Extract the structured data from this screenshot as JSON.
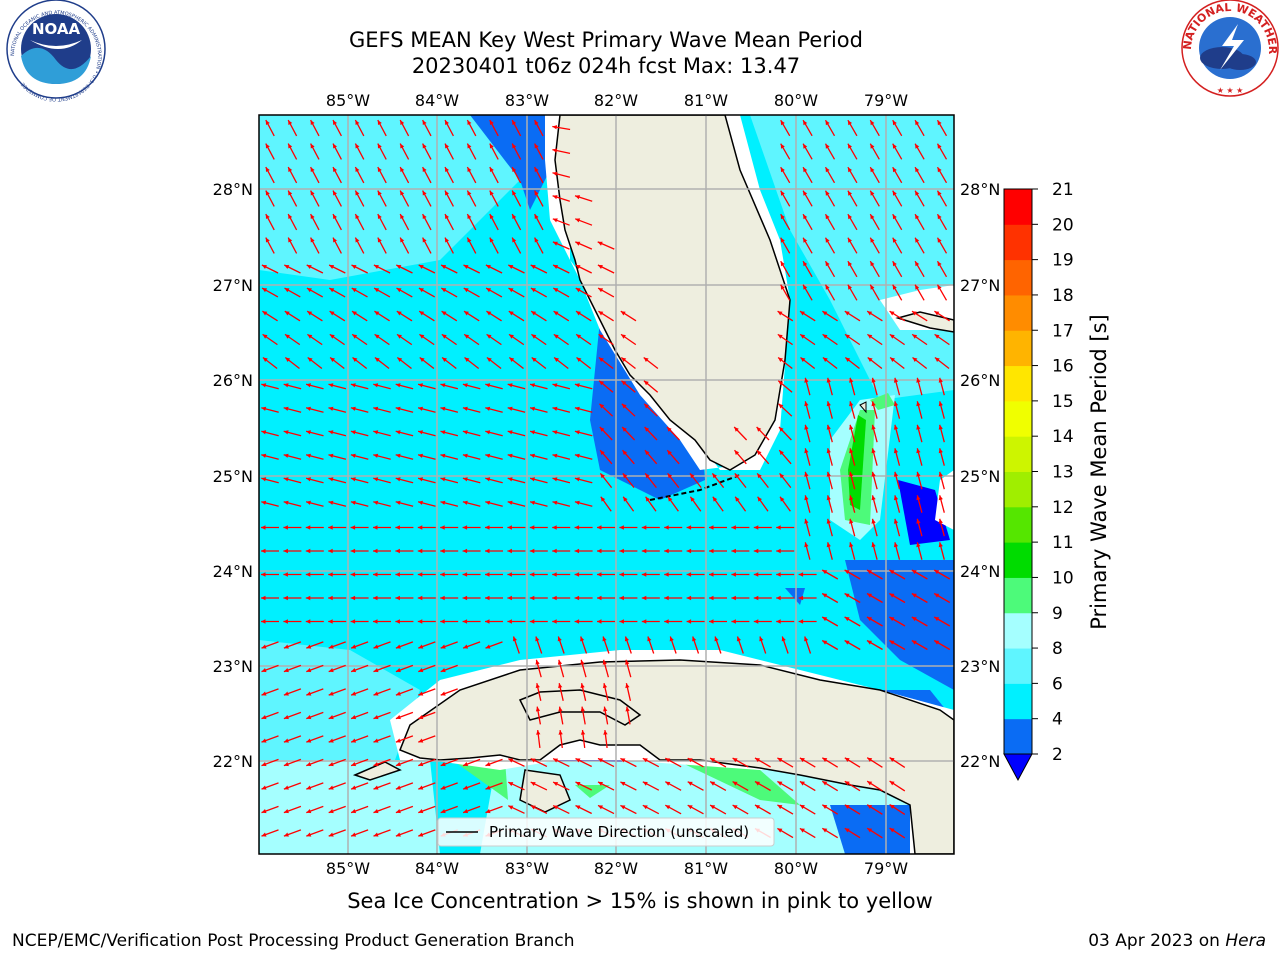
{
  "header": {
    "title_line1": "GEFS MEAN Key West Primary Wave Mean Period",
    "title_line2": "20230401 t06z 024h fcst   Max: 13.47"
  },
  "logos": {
    "noaa": {
      "center_text": "NOAA",
      "ring_text": "NATIONAL OCEANIC AND ATMOSPHERIC ADMINISTRATION • U.S. DEPARTMENT OF COMMERCE"
    },
    "nws": {
      "ring_text": "NATIONAL WEATHER SERVICE"
    }
  },
  "map": {
    "lon_labels": [
      "85°W",
      "84°W",
      "83°W",
      "82°W",
      "81°W",
      "80°W",
      "79°W"
    ],
    "lat_labels": [
      "28°N",
      "27°N",
      "26°N",
      "25°N",
      "24°N",
      "23°N",
      "22°N"
    ],
    "arrow_color": "#ff0000",
    "land_color": "#eeeedf",
    "legend_label": "Primary Wave Direction (unscaled)"
  },
  "colorbar": {
    "label": "Primary Wave Mean Period [s]",
    "ticks": [
      "21",
      "20",
      "19",
      "18",
      "17",
      "16",
      "15",
      "14",
      "13",
      "12",
      "11",
      "10",
      "9",
      "8",
      "6",
      "4",
      "2"
    ],
    "levels": [
      {
        "from": 2,
        "to": 4,
        "color": "#0a6cf4"
      },
      {
        "from": 4,
        "to": 6,
        "color": "#00f0ff"
      },
      {
        "from": 6,
        "to": 8,
        "color": "#5ff5ff"
      },
      {
        "from": 8,
        "to": 9,
        "color": "#a5ffff"
      },
      {
        "from": 9,
        "to": 10,
        "color": "#4dfa7a"
      },
      {
        "from": 10,
        "to": 11,
        "color": "#00dc00"
      },
      {
        "from": 11,
        "to": 12,
        "color": "#55e600"
      },
      {
        "from": 12,
        "to": 13,
        "color": "#a0ee00"
      },
      {
        "from": 13,
        "to": 14,
        "color": "#cdf500"
      },
      {
        "from": 14,
        "to": 15,
        "color": "#f0ff00"
      },
      {
        "from": 15,
        "to": 16,
        "color": "#ffe600"
      },
      {
        "from": 16,
        "to": 17,
        "color": "#ffb400"
      },
      {
        "from": 17,
        "to": 18,
        "color": "#ff8c00"
      },
      {
        "from": 18,
        "to": 19,
        "color": "#ff6400"
      },
      {
        "from": 19,
        "to": 20,
        "color": "#ff3200"
      },
      {
        "from": 20,
        "to": 21,
        "color": "#ff0000"
      }
    ],
    "under_color": "#0000ff"
  },
  "footer": {
    "ice_note": "Sea Ice Concentration > 15% is shown in pink to yellow",
    "credit": "NCEP/EMC/Verification Post Processing Product Generation Branch",
    "date": "03 Apr 2023 on",
    "machine": "Hera"
  }
}
